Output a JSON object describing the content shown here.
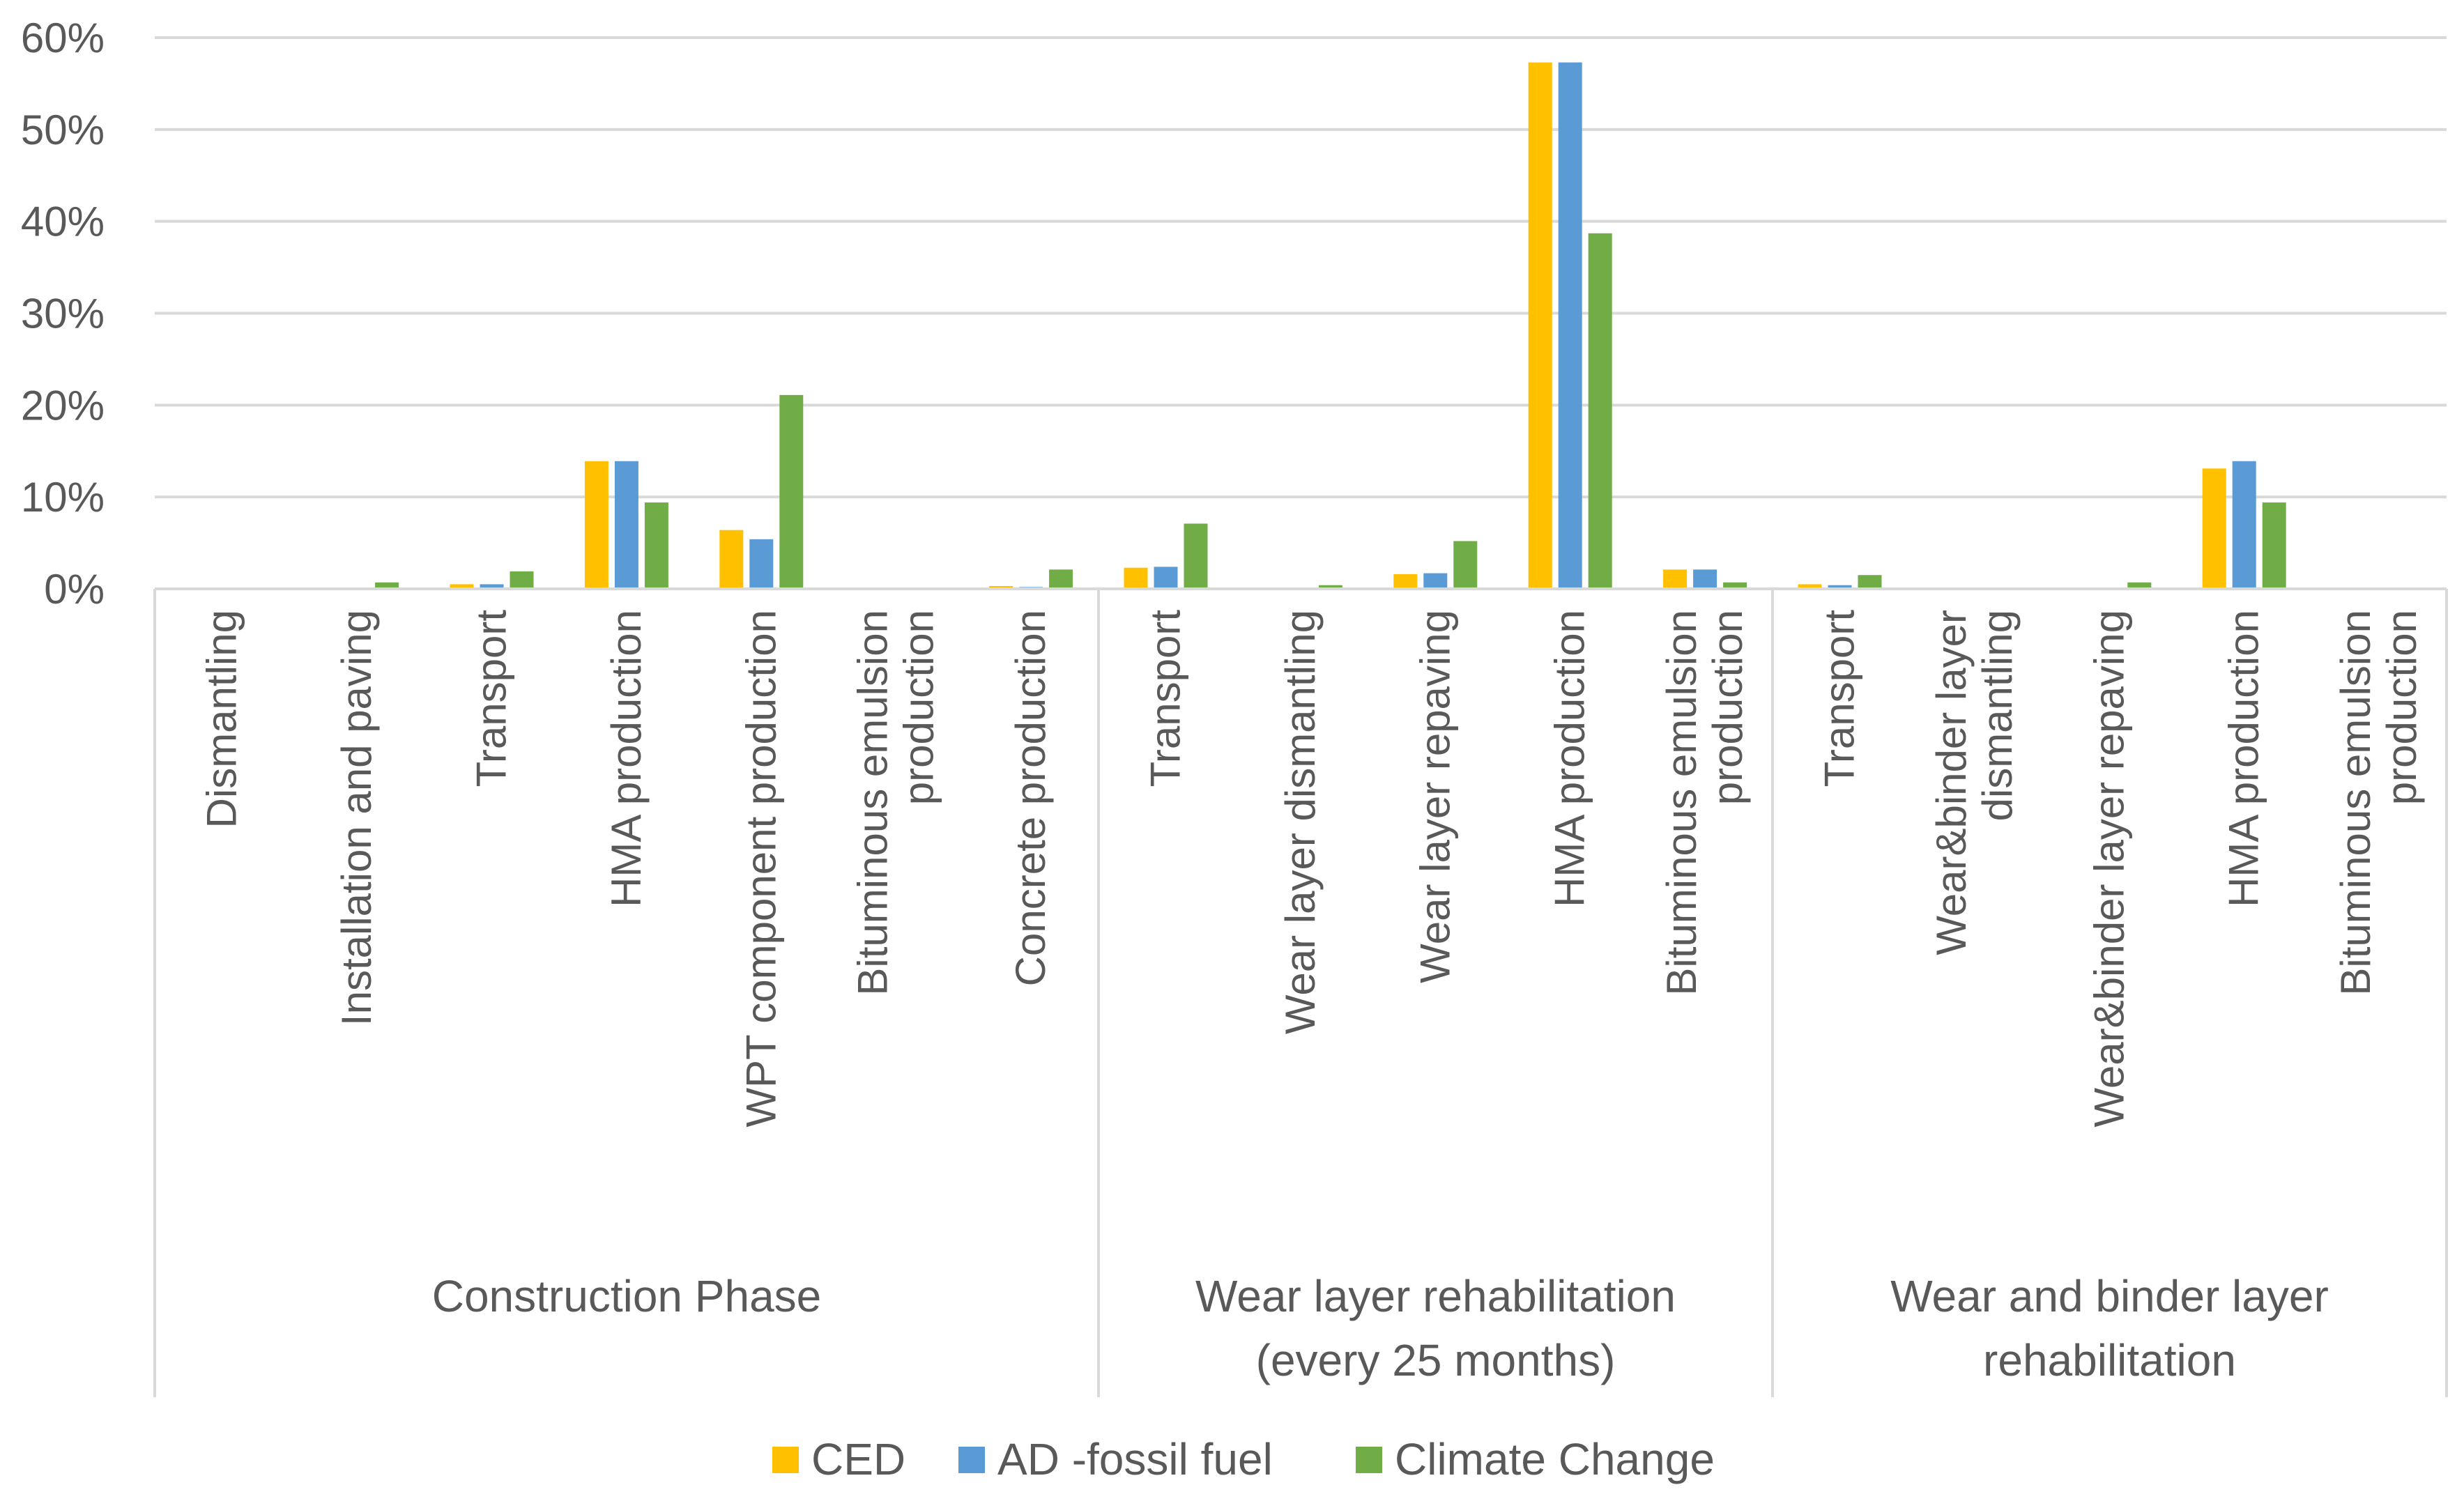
{
  "chart_data": {
    "type": "bar",
    "title": "",
    "xlabel": "",
    "ylabel": "",
    "ylim": [
      0,
      60
    ],
    "y_ticks": [
      0,
      10,
      20,
      30,
      40,
      50,
      60
    ],
    "y_tick_labels": [
      "0%",
      "10%",
      "20%",
      "30%",
      "40%",
      "50%",
      "60%"
    ],
    "grid": "horizontal",
    "legend_position": "bottom",
    "groups": [
      {
        "label_lines": [
          "Construction Phase"
        ],
        "categories": [
          [
            "Dismantling"
          ],
          [
            "Installation and paving"
          ],
          [
            "Transport"
          ],
          [
            "HMA production"
          ],
          [
            "WPT component production"
          ],
          [
            "Bituminous emulsion",
            "production"
          ],
          [
            "Concrete production"
          ]
        ]
      },
      {
        "label_lines": [
          "Wear layer rehabilitation",
          "(every 25 months)"
        ],
        "categories": [
          [
            "Transport"
          ],
          [
            "Wear layer dismantling"
          ],
          [
            "Wear layer repaving"
          ],
          [
            "HMA production"
          ],
          [
            "Bituminous emulsion",
            "production"
          ]
        ]
      },
      {
        "label_lines": [
          "Wear and binder layer",
          "rehabilitation"
        ],
        "categories": [
          [
            "Transport"
          ],
          [
            "Wear&binder layer",
            "dismantling"
          ],
          [
            "Wear&binder layer repaving"
          ],
          [
            "HMA production"
          ],
          [
            "Bituminous emulsion",
            "production"
          ]
        ]
      }
    ],
    "series": [
      {
        "name": "CED",
        "color": "#FFC000",
        "values": [
          0,
          0.1,
          0.5,
          13.9,
          6.4,
          0,
          0.3,
          2.3,
          0,
          1.6,
          57.3,
          2.1,
          0.5,
          0,
          0,
          13.1,
          0
        ]
      },
      {
        "name": "AD -fossil fuel",
        "color": "#5B9BD5",
        "values": [
          0,
          0.1,
          0.5,
          13.9,
          5.4,
          0,
          0.2,
          2.4,
          0,
          1.7,
          57.3,
          2.1,
          0.4,
          0,
          0,
          13.9,
          0
        ]
      },
      {
        "name": "Climate Change",
        "color": "#70AD47",
        "values": [
          0,
          0.7,
          1.9,
          9.4,
          21.1,
          0,
          2.1,
          7.1,
          0.4,
          5.2,
          38.7,
          0.7,
          1.5,
          0,
          0.7,
          9.4,
          0
        ]
      }
    ]
  }
}
